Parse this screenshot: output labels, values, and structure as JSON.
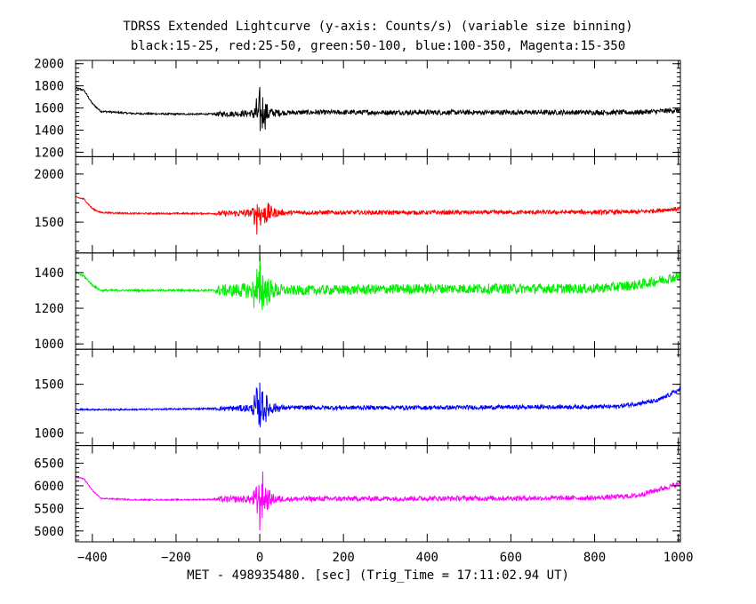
{
  "chart_data": {
    "type": "line",
    "title": "TDRSS Extended Lightcurve (y-axis: Counts/s) (variable size binning)",
    "subtitle": "black:15-25, red:25-50, green:50-100, blue:100-350, Magenta:15-350",
    "xlabel": "MET - 498935480. [sec] (Trig_Time = 17:11:02.94 UT)",
    "ylabel": "Counts/s",
    "xlim": [
      -440,
      1005
    ],
    "x_ticks": [
      -400,
      -200,
      0,
      200,
      400,
      600,
      800,
      1000
    ],
    "x_tick_labels": [
      "−400",
      "−200",
      "0",
      "200",
      "400",
      "600",
      "800",
      "1000"
    ],
    "grid": false,
    "panels": [
      {
        "name": "black:15-25",
        "color": "#000000",
        "ylim": [
          1160,
          2030
        ],
        "y_ticks": [
          1200,
          1400,
          1600,
          1800,
          2000
        ],
        "y_tick_labels": [
          "1200",
          "1400",
          "1600",
          "1800",
          "2000"
        ],
        "profile": [
          [
            -440,
            1780
          ],
          [
            -420,
            1760
          ],
          [
            -400,
            1640
          ],
          [
            -380,
            1570
          ],
          [
            -300,
            1550
          ],
          [
            -200,
            1545
          ],
          [
            -100,
            1545
          ],
          [
            100,
            1560
          ],
          [
            400,
            1560
          ],
          [
            900,
            1560
          ],
          [
            1005,
            1580
          ]
        ],
        "noise": [
          [
            -440,
            8
          ],
          [
            -110,
            8
          ],
          [
            -100,
            22
          ],
          [
            -20,
            30
          ],
          [
            0,
            160
          ],
          [
            30,
            40
          ],
          [
            60,
            22
          ],
          [
            1005,
            22
          ]
        ]
      },
      {
        "name": "red:25-50",
        "color": "#ff0000",
        "ylim": [
          1180,
          2180
        ],
        "y_ticks": [
          1500,
          2000
        ],
        "y_tick_labels": [
          "1500",
          "2000"
        ],
        "profile": [
          [
            -440,
            1760
          ],
          [
            -420,
            1740
          ],
          [
            -400,
            1640
          ],
          [
            -380,
            1600
          ],
          [
            -300,
            1590
          ],
          [
            -200,
            1590
          ],
          [
            -100,
            1590
          ],
          [
            100,
            1600
          ],
          [
            400,
            1600
          ],
          [
            900,
            1605
          ],
          [
            1005,
            1640
          ]
        ],
        "noise": [
          [
            -440,
            8
          ],
          [
            -110,
            8
          ],
          [
            -100,
            24
          ],
          [
            -20,
            40
          ],
          [
            0,
            200
          ],
          [
            30,
            60
          ],
          [
            60,
            22
          ],
          [
            1005,
            22
          ]
        ]
      },
      {
        "name": "green:50-100",
        "color": "#00ee00",
        "ylim": [
          970,
          1510
        ],
        "y_ticks": [
          1000,
          1200,
          1400
        ],
        "y_tick_labels": [
          "1000",
          "1200",
          "1400"
        ],
        "profile": [
          [
            -440,
            1400
          ],
          [
            -420,
            1380
          ],
          [
            -400,
            1330
          ],
          [
            -380,
            1300
          ],
          [
            -300,
            1300
          ],
          [
            -200,
            1300
          ],
          [
            -100,
            1300
          ],
          [
            100,
            1300
          ],
          [
            400,
            1310
          ],
          [
            800,
            1310
          ],
          [
            900,
            1330
          ],
          [
            1005,
            1380
          ]
        ],
        "noise": [
          [
            -440,
            6
          ],
          [
            -110,
            6
          ],
          [
            -100,
            30
          ],
          [
            -20,
            45
          ],
          [
            0,
            140
          ],
          [
            30,
            50
          ],
          [
            60,
            28
          ],
          [
            1005,
            28
          ]
        ]
      },
      {
        "name": "blue:100-350",
        "color": "#0000ff",
        "ylim": [
          870,
          1860
        ],
        "y_ticks": [
          1000,
          1500
        ],
        "y_tick_labels": [
          "1000",
          "1500"
        ],
        "profile": [
          [
            -440,
            1240
          ],
          [
            -300,
            1240
          ],
          [
            -100,
            1250
          ],
          [
            100,
            1260
          ],
          [
            400,
            1260
          ],
          [
            850,
            1270
          ],
          [
            950,
            1330
          ],
          [
            1005,
            1450
          ]
        ],
        "noise": [
          [
            -440,
            8
          ],
          [
            -110,
            8
          ],
          [
            -100,
            22
          ],
          [
            -20,
            40
          ],
          [
            0,
            230
          ],
          [
            30,
            60
          ],
          [
            60,
            22
          ],
          [
            1005,
            22
          ]
        ]
      },
      {
        "name": "Magenta:15-350",
        "color": "#ff00ff",
        "ylim": [
          4760,
          6890
        ],
        "y_ticks": [
          5000,
          5500,
          6000,
          6500
        ],
        "y_tick_labels": [
          "5000",
          "5500",
          "6000",
          "6500"
        ],
        "profile": [
          [
            -440,
            6200
          ],
          [
            -420,
            6150
          ],
          [
            -400,
            5900
          ],
          [
            -380,
            5720
          ],
          [
            -300,
            5690
          ],
          [
            -200,
            5690
          ],
          [
            -100,
            5700
          ],
          [
            100,
            5710
          ],
          [
            400,
            5720
          ],
          [
            800,
            5730
          ],
          [
            900,
            5780
          ],
          [
            1005,
            6050
          ]
        ],
        "noise": [
          [
            -440,
            15
          ],
          [
            -110,
            15
          ],
          [
            -100,
            60
          ],
          [
            -20,
            90
          ],
          [
            0,
            480
          ],
          [
            30,
            120
          ],
          [
            60,
            55
          ],
          [
            1005,
            55
          ]
        ]
      }
    ]
  }
}
